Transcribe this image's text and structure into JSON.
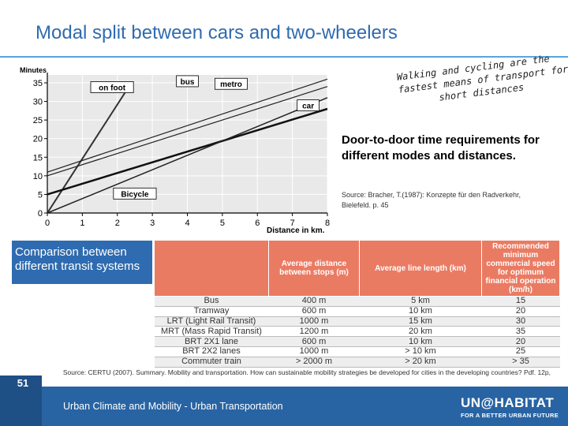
{
  "title": "Modal split between cars and two-wheelers",
  "chart_data": {
    "type": "line",
    "ylabel": "Minutes",
    "xlabel": "Distance in km.",
    "xlim": [
      0,
      8
    ],
    "ylim": [
      0,
      35
    ],
    "x_ticks": [
      "0",
      "1",
      "2",
      "3",
      "4",
      "5",
      "6",
      "7",
      "8"
    ],
    "y_ticks": [
      "0",
      "5",
      "10",
      "15",
      "20",
      "25",
      "30",
      "35"
    ],
    "series": [
      {
        "name": "on foot",
        "x": [
          0,
          2.4
        ],
        "y": [
          0,
          35
        ]
      },
      {
        "name": "bus",
        "x": [
          0,
          8
        ],
        "y": [
          11,
          36
        ]
      },
      {
        "name": "metro",
        "x": [
          0,
          8
        ],
        "y": [
          10,
          34
        ]
      },
      {
        "name": "car",
        "x": [
          0,
          8
        ],
        "y": [
          5,
          28
        ]
      },
      {
        "name": "Bicycle",
        "x": [
          0,
          8
        ],
        "y": [
          0,
          31
        ]
      }
    ]
  },
  "hand_note": [
    "Walking and cycling are the",
    "fastest means of transport for",
    "short distances"
  ],
  "door_text": "Door-to-door time requirements for different modes and distances.",
  "source1": "Source: Bracher, T.(1987): Konzepte für den Radverkehr, Bielefeld. p. 45",
  "comparison_text": "Comparison between different transit systems",
  "table": {
    "headers": [
      "",
      "Average distance between stops (m)",
      "Average line length (km)",
      "Recommended minimum commercial speed for optimum financial operation (km/h)"
    ],
    "rows": [
      [
        "Bus",
        "400 m",
        "5 km",
        "15"
      ],
      [
        "Tramway",
        "600 m",
        "10 km",
        "20"
      ],
      [
        "LRT (Light Rail Transit)",
        "1000 m",
        "15 km",
        "30"
      ],
      [
        "MRT (Mass Rapid Transit)",
        "1200 m",
        "20 km",
        "35"
      ],
      [
        "BRT 2X1 lane",
        "600 m",
        "10 km",
        "20"
      ],
      [
        "BRT 2X2 lanes",
        "1000 m",
        "> 10 km",
        "25"
      ],
      [
        "Commuter train",
        "> 2000 m",
        "> 20 km",
        "> 35"
      ]
    ]
  },
  "source2": "Source: CERTU (2007). Summary. Mobility and transportation. How can sustainable mobility strategies be developed for cities in the developing countries? Pdf. 12p,",
  "page_number": "51",
  "footer_text": "Urban Climate and Mobility - Urban Transportation",
  "logo_line1": "UN@HABITAT",
  "logo_line2": "FOR A BETTER URBAN FUTURE",
  "colors": {
    "title": "#2f6bb0",
    "table_header": "#ea7b63",
    "footer": "#2864a3"
  }
}
